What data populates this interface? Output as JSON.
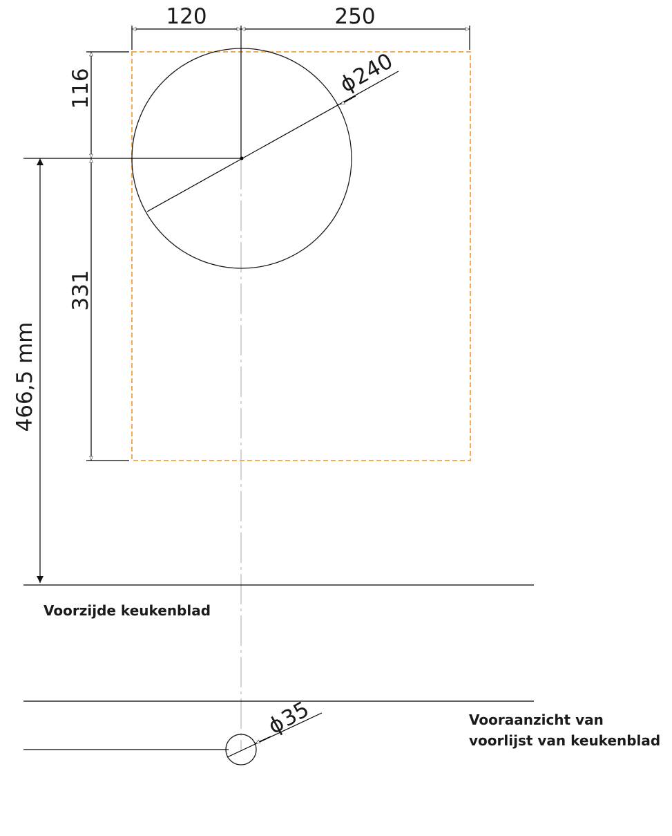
{
  "dimensions": {
    "left_offset": "120",
    "right_offset": "250",
    "top_offset": "116",
    "cutout_depth": "331",
    "total_depth": "466,5 mm",
    "hole_diameter": "240",
    "small_hole_diameter": "35",
    "diameter_symbol": "ϕ"
  },
  "labels": {
    "countertop_front": "Voorzijde keukenblad",
    "front_view_line1": "Vooraanzicht van",
    "front_view_line2": "voorlijst van keukenblad"
  },
  "colors": {
    "cutout_outline": "#f0a040",
    "line": "#000000",
    "center_line": "#b8b8b8"
  }
}
